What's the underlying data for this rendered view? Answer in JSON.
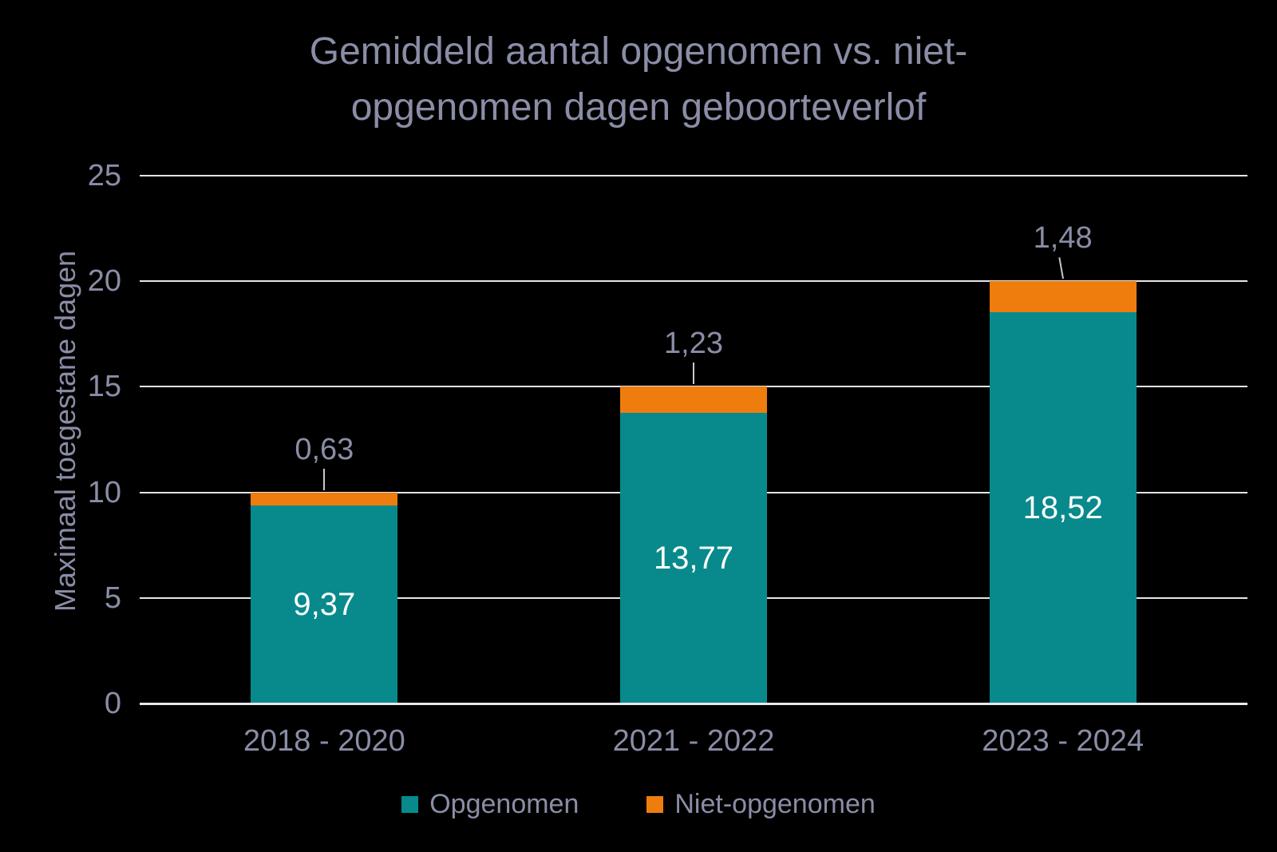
{
  "colors": {
    "opgenomen": "#088A8C",
    "niet_opgenomen": "#EE7D0E",
    "text_muted": "#8A8DA6",
    "data_label_inside": "#FFFFFF",
    "gridline": "#E4E4EC",
    "leader_line": "#C6C8D2",
    "background": "#000000"
  },
  "chart_data": {
    "type": "bar",
    "stacked": true,
    "title": "Gemiddeld aantal opgenomen vs. niet-opgenomen dagen geboorteverlof",
    "xlabel": "",
    "ylabel": "Maximaal toegestane dagen",
    "ylim": [
      0,
      25
    ],
    "yticks": [
      0,
      5,
      10,
      15,
      20,
      25
    ],
    "grid": true,
    "legend_position": "bottom",
    "categories": [
      "2018 - 2020",
      "2021 - 2022",
      "2023 - 2024"
    ],
    "series": [
      {
        "name": "Opgenomen",
        "color": "#088A8C",
        "values": [
          9.37,
          13.77,
          18.52
        ],
        "labels": [
          "9,37",
          "13,77",
          "18,52"
        ]
      },
      {
        "name": "Niet-opgenomen",
        "color": "#EE7D0E",
        "values": [
          0.63,
          1.23,
          1.48
        ],
        "labels": [
          "0,63",
          "1,23",
          "1,48"
        ]
      }
    ],
    "totals": [
      10,
      15,
      20
    ]
  }
}
